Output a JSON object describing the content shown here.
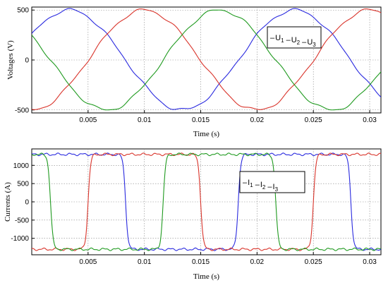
{
  "chart_data": [
    {
      "type": "line",
      "xlabel": "Time (s)",
      "ylabel": "Voltages (V)",
      "xlim": [
        0,
        0.031
      ],
      "ylim": [
        -530,
        530
      ],
      "xticks": [
        0.005,
        0.01,
        0.015,
        0.02,
        0.025,
        0.03
      ],
      "xtick_labels": [
        "0.005",
        "0.01",
        "0.015",
        "0.02",
        "0.025",
        "0.03"
      ],
      "yticks": [
        500,
        0,
        -500
      ],
      "ytick_labels": [
        "500",
        "0",
        "-500"
      ],
      "grid": true,
      "legend_position": "right",
      "frequency_hz": 50,
      "amplitude": 500,
      "series": [
        {
          "name": "U1",
          "label": "U",
          "sub": "1",
          "color": "#2a2adf",
          "phase_deg": 30
        },
        {
          "name": "U2",
          "label": "U",
          "sub": "2",
          "color": "#d9342b",
          "phase_deg": -90
        },
        {
          "name": "U3",
          "label": "U",
          "sub": "3",
          "color": "#1f9a1f",
          "phase_deg": 150
        }
      ]
    },
    {
      "type": "line",
      "xlabel": "Time (s)",
      "ylabel": "Currents (A)",
      "xlim": [
        0,
        0.031
      ],
      "ylim": [
        -1450,
        1450
      ],
      "xticks": [
        0.005,
        0.01,
        0.015,
        0.02,
        0.025,
        0.03
      ],
      "xtick_labels": [
        "0.005",
        "0.01",
        "0.015",
        "0.02",
        "0.025",
        "0.03"
      ],
      "yticks": [
        1000,
        500,
        0,
        -500,
        -1000
      ],
      "ytick_labels": [
        "1000",
        "500",
        "0",
        "-500",
        "-1000"
      ],
      "grid": true,
      "legend_position": "center-right",
      "frequency_hz": 50,
      "amplitude": 1300,
      "series": [
        {
          "name": "I1",
          "label": "I",
          "sub": "1",
          "color": "#2a2adf",
          "phase_deg": 30
        },
        {
          "name": "I2",
          "label": "I",
          "sub": "2",
          "color": "#d9342b",
          "phase_deg": -90
        },
        {
          "name": "I3",
          "label": "I",
          "sub": "3",
          "color": "#1f9a1f",
          "phase_deg": 150
        }
      ]
    }
  ]
}
